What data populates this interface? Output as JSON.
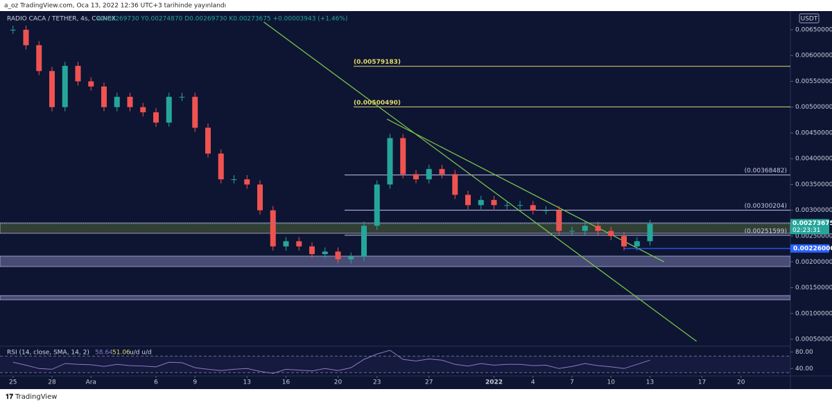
{
  "header": {
    "author": "a_oz TradingView.com, Oca 13, 2022 12:36 UTC+3 tarihinde yayınlandı"
  },
  "footer": {
    "brand": "TradingView"
  },
  "chart_data": {
    "type": "candlestick",
    "title": "RADIO CACA / TETHER, 4s, COINEX",
    "legend_values": "A0.00269730 Y0.00274870 D0.00269730 K0.00273675 +0.00003943 (+1.46%)",
    "currency": "USDT",
    "x": [
      0,
      1,
      2,
      3,
      4,
      5,
      6,
      7,
      8,
      9,
      10,
      11,
      12,
      13,
      14,
      15,
      16,
      17,
      18,
      19,
      20,
      21,
      22,
      23,
      24,
      25,
      26,
      27,
      28,
      29,
      30,
      31,
      32,
      33,
      34,
      35,
      36,
      37,
      38,
      39,
      40,
      41,
      42,
      43,
      44,
      45,
      46,
      47,
      48,
      49
    ],
    "values": [
      0.0065,
      0.0062,
      0.0057,
      0.005,
      0.0058,
      0.0055,
      0.0054,
      0.005,
      0.0052,
      0.005,
      0.0049,
      0.0047,
      0.0052,
      0.0052,
      0.0046,
      0.0041,
      0.0036,
      0.0036,
      0.0035,
      0.003,
      0.0023,
      0.0024,
      0.0023,
      0.00215,
      0.0022,
      0.00205,
      0.0021,
      0.0027,
      0.0035,
      0.0044,
      0.0037,
      0.0036,
      0.0038,
      0.0037,
      0.0033,
      0.0031,
      0.0032,
      0.0031,
      0.0031,
      0.0031,
      0.003,
      0.003,
      0.0026,
      0.0026,
      0.0027,
      0.0026,
      0.0025,
      0.0023,
      0.0024,
      0.00273675
    ],
    "up_color": "#26a69a",
    "down_color": "#ef5350",
    "xlim": [
      -1,
      59.8
    ],
    "xticks": [
      {
        "value": 0,
        "label": "25"
      },
      {
        "value": 3,
        "label": "28"
      },
      {
        "value": 6,
        "label": "Ara"
      },
      {
        "value": 11,
        "label": "6"
      },
      {
        "value": 14,
        "label": "9"
      },
      {
        "value": 18,
        "label": "13"
      },
      {
        "value": 21,
        "label": "16"
      },
      {
        "value": 25,
        "label": "20"
      },
      {
        "value": 28,
        "label": "23"
      },
      {
        "value": 32,
        "label": "27"
      },
      {
        "value": 37,
        "label": "2022"
      },
      {
        "value": 40,
        "label": "4"
      },
      {
        "value": 43,
        "label": "7"
      },
      {
        "value": 46,
        "label": "10"
      },
      {
        "value": 49,
        "label": "13"
      },
      {
        "value": 53,
        "label": "17"
      },
      {
        "value": 56,
        "label": "20"
      }
    ],
    "ylim": [
      0.000366,
      0.006862
    ],
    "yticks": [
      {
        "value": 0.0005,
        "label": "0.00050000"
      },
      {
        "value": 0.001,
        "label": "0.00100000"
      },
      {
        "value": 0.0015,
        "label": "0.00150000"
      },
      {
        "value": 0.002,
        "label": "0.00200000"
      },
      {
        "value": 0.0025,
        "label": "0.00250000"
      },
      {
        "value": 0.003,
        "label": "0.00300000"
      },
      {
        "value": 0.0035,
        "label": "0.00350000"
      },
      {
        "value": 0.004,
        "label": "0.00400000"
      },
      {
        "value": 0.0045,
        "label": "0.00450000"
      },
      {
        "value": 0.005,
        "label": "0.00500000"
      },
      {
        "value": 0.0055,
        "label": "0.00550000"
      },
      {
        "value": 0.006,
        "label": "0.00600000"
      },
      {
        "value": 0.0065,
        "label": "0.00650000"
      }
    ],
    "levels": [
      {
        "value": 0.00579183,
        "label": "(0.00579183)",
        "color": "#e6d96a",
        "side": "left"
      },
      {
        "value": 0.0050049,
        "label": "(0.00500490)",
        "color": "#e6d96a",
        "side": "left"
      },
      {
        "value": 0.00368482,
        "label": "(0.00368482)",
        "color": "#c8c8e8",
        "side": "right"
      },
      {
        "value": 0.00300204,
        "label": "(0.00300204)",
        "color": "#c8c8e8",
        "side": "right"
      },
      {
        "value": 0.00251599,
        "label": "(0.00251599)",
        "color": "#c8c8e8",
        "side": "right"
      }
    ],
    "zones": [
      {
        "from": 0.002554,
        "to": 0.002755,
        "color": "#3c4a35"
      },
      {
        "from": 0.001909,
        "to": 0.002111,
        "color": "#565a86"
      },
      {
        "from": 0.001265,
        "to": 0.001346,
        "color": "#565a86"
      }
    ],
    "trendlines": [
      {
        "x": [
          19.29,
          52.58
        ],
        "y": [
          0.00665,
          0.00046
        ],
        "color": "#7cc24a"
      },
      {
        "x": [
          28.77,
          50.08
        ],
        "y": [
          0.004768,
          0.002
        ],
        "color": "#7cc24a"
      }
    ],
    "current_price": 0.00273675,
    "countdown": "02:23:31",
    "marker": {
      "value": 0.00226,
      "label": "0.00226000",
      "color": "#2962ff"
    },
    "rsi": {
      "title": "RSI (14, close, SMA, 14, 2)",
      "rsi_value": "58.64",
      "sma_value": "51.06",
      "extra": "u/d  u/d",
      "values": [
        55,
        48,
        40,
        38,
        52,
        50,
        49,
        45,
        50,
        47,
        46,
        44,
        55,
        54,
        42,
        38,
        35,
        38,
        40,
        33,
        28,
        38,
        36,
        34,
        40,
        35,
        42,
        62,
        75,
        84,
        62,
        58,
        63,
        60,
        50,
        46,
        52,
        48,
        50,
        50,
        47,
        48,
        40,
        45,
        52,
        47,
        44,
        40,
        50,
        60
      ],
      "color": "#8e7cc3",
      "ylim": [
        22,
        89
      ],
      "yticks": [
        {
          "value": 40,
          "label": "40.00"
        },
        {
          "value": 80,
          "label": "80.00"
        }
      ],
      "bands": [
        30,
        70
      ]
    }
  }
}
